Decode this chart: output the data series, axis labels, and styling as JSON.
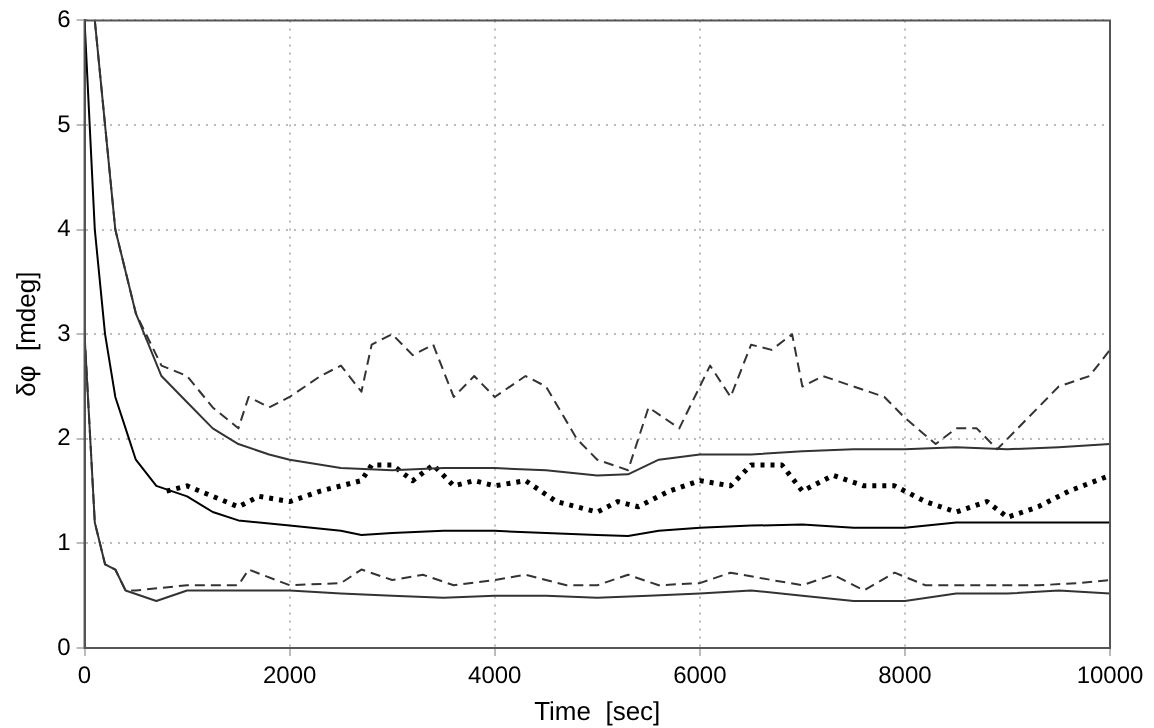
{
  "chart_data": {
    "type": "line",
    "xlabel": "Time  [sec]",
    "ylabel": "δφ  [mdeg]",
    "xlim": [
      0,
      10000
    ],
    "xticks": [
      0,
      2000,
      4000,
      6000,
      8000,
      10000
    ],
    "ylim": [
      0,
      6
    ],
    "yticks": [
      0,
      1,
      2,
      3,
      4,
      5,
      6
    ],
    "grid": true,
    "legend": false,
    "marker": "none",
    "series": [
      {
        "color": "#333333",
        "line_style": "dashed",
        "x": [
          100,
          300,
          500,
          750,
          1000,
          1250,
          1500,
          1600,
          1800,
          2000,
          2300,
          2500,
          2700,
          2800,
          3000,
          3200,
          3400,
          3600,
          3800,
          4000,
          4300,
          4500,
          4800,
          5000,
          5300,
          5500,
          5800,
          6100,
          6300,
          6500,
          6700,
          6900,
          7000,
          7200,
          7500,
          7800,
          8000,
          8300,
          8500,
          8700,
          8900,
          9200,
          9500,
          9800,
          10000
        ],
        "values": [
          6,
          4.0,
          3.2,
          2.7,
          2.6,
          2.3,
          2.1,
          2.4,
          2.3,
          2.4,
          2.6,
          2.7,
          2.45,
          2.9,
          3.0,
          2.8,
          2.9,
          2.4,
          2.6,
          2.4,
          2.6,
          2.5,
          2.0,
          1.8,
          1.7,
          2.3,
          2.1,
          2.7,
          2.4,
          2.9,
          2.85,
          3.0,
          2.5,
          2.6,
          2.5,
          2.4,
          2.2,
          1.95,
          2.1,
          2.1,
          1.9,
          2.2,
          2.5,
          2.6,
          2.85
        ]
      },
      {
        "color": "#333333",
        "line_style": "solid",
        "x": [
          100,
          300,
          500,
          750,
          1000,
          1250,
          1500,
          1800,
          2000,
          2500,
          3000,
          3500,
          4000,
          4500,
          5000,
          5300,
          5600,
          6000,
          6500,
          7000,
          7500,
          8000,
          8500,
          9000,
          9500,
          10000
        ],
        "values": [
          6,
          4.0,
          3.2,
          2.6,
          2.35,
          2.1,
          1.95,
          1.85,
          1.8,
          1.72,
          1.7,
          1.72,
          1.72,
          1.7,
          1.65,
          1.66,
          1.8,
          1.85,
          1.85,
          1.88,
          1.9,
          1.9,
          1.92,
          1.9,
          1.92,
          1.95
        ]
      },
      {
        "color": "#000000",
        "line_style": "dotted",
        "x": [
          800,
          1000,
          1250,
          1500,
          1700,
          2000,
          2300,
          2500,
          2700,
          2800,
          3000,
          3200,
          3400,
          3600,
          3800,
          4000,
          4300,
          4600,
          5000,
          5200,
          5400,
          5700,
          6000,
          6300,
          6500,
          6800,
          7000,
          7300,
          7600,
          7900,
          8200,
          8500,
          8800,
          9000,
          9300,
          9600,
          10000
        ],
        "values": [
          1.5,
          1.55,
          1.45,
          1.35,
          1.45,
          1.4,
          1.5,
          1.55,
          1.6,
          1.75,
          1.75,
          1.6,
          1.75,
          1.55,
          1.6,
          1.55,
          1.6,
          1.4,
          1.3,
          1.4,
          1.35,
          1.5,
          1.6,
          1.55,
          1.75,
          1.75,
          1.5,
          1.65,
          1.55,
          1.55,
          1.4,
          1.3,
          1.4,
          1.25,
          1.35,
          1.5,
          1.65
        ]
      },
      {
        "color": "#000000",
        "line_style": "solid",
        "x": [
          0,
          100,
          200,
          300,
          400,
          500,
          700,
          1000,
          1250,
          1500,
          2000,
          2500,
          2700,
          3000,
          3500,
          4000,
          4500,
          5000,
          5300,
          5600,
          6000,
          6500,
          7000,
          7500,
          8000,
          8500,
          9000,
          9500,
          10000
        ],
        "values": [
          6,
          4.0,
          3.0,
          2.4,
          2.1,
          1.8,
          1.55,
          1.45,
          1.3,
          1.22,
          1.17,
          1.12,
          1.08,
          1.1,
          1.12,
          1.12,
          1.1,
          1.08,
          1.07,
          1.12,
          1.15,
          1.17,
          1.18,
          1.15,
          1.15,
          1.2,
          1.2,
          1.2,
          1.2
        ]
      },
      {
        "color": "#333333",
        "line_style": "dashed",
        "x": [
          0,
          100,
          200,
          300,
          400,
          500,
          1000,
          1500,
          1600,
          2000,
          2500,
          2700,
          3000,
          3300,
          3600,
          4000,
          4300,
          4700,
          5000,
          5300,
          5600,
          6000,
          6300,
          6700,
          7000,
          7300,
          7600,
          7900,
          8200,
          8600,
          9000,
          9300,
          9700,
          10000
        ],
        "values": [
          3.0,
          1.2,
          0.8,
          0.75,
          0.55,
          0.55,
          0.6,
          0.6,
          0.75,
          0.6,
          0.62,
          0.75,
          0.65,
          0.7,
          0.6,
          0.65,
          0.7,
          0.6,
          0.6,
          0.7,
          0.6,
          0.62,
          0.72,
          0.65,
          0.6,
          0.7,
          0.55,
          0.72,
          0.6,
          0.6,
          0.6,
          0.6,
          0.62,
          0.65
        ]
      },
      {
        "color": "#333333",
        "line_style": "solid",
        "x": [
          0,
          100,
          200,
          300,
          400,
          700,
          1000,
          1500,
          2000,
          2500,
          3000,
          3500,
          4000,
          4500,
          5000,
          5500,
          6000,
          6500,
          7000,
          7500,
          8000,
          8500,
          9000,
          9500,
          10000
        ],
        "values": [
          3.0,
          1.2,
          0.8,
          0.75,
          0.55,
          0.45,
          0.55,
          0.55,
          0.55,
          0.52,
          0.5,
          0.48,
          0.5,
          0.5,
          0.48,
          0.5,
          0.52,
          0.55,
          0.5,
          0.45,
          0.45,
          0.52,
          0.52,
          0.55,
          0.52
        ]
      }
    ]
  }
}
